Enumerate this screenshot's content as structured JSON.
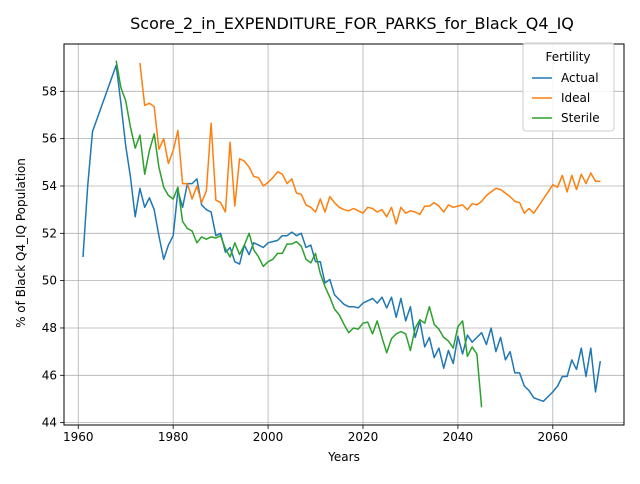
{
  "chart_data": {
    "type": "line",
    "title": "Score_2_in_EXPENDITURE_FOR_PARKS_for_Black_Q4_IQ",
    "xlabel": "Years",
    "ylabel": "% of Black Q4_IQ Population",
    "xlim": [
      1957,
      2075
    ],
    "ylim": [
      43.9,
      60.0
    ],
    "xticks": [
      1960,
      1980,
      2000,
      2020,
      2040,
      2060
    ],
    "yticks": [
      44,
      46,
      48,
      50,
      52,
      54,
      56,
      58
    ],
    "grid": true,
    "legend": {
      "title": "Fertility",
      "position": "top-right"
    },
    "series": [
      {
        "name": "Actual",
        "color": "#1f77b4",
        "points": [
          [
            1961,
            51.0
          ],
          [
            1962,
            54.0
          ],
          [
            1963,
            56.3
          ],
          [
            1968,
            59.1
          ],
          [
            1969,
            57.5
          ],
          [
            1970,
            55.7
          ],
          [
            1971,
            54.4
          ],
          [
            1972,
            52.7
          ],
          [
            1973,
            53.9
          ],
          [
            1974,
            53.1
          ],
          [
            1975,
            53.5
          ],
          [
            1976,
            53.0
          ],
          [
            1977,
            51.9
          ],
          [
            1978,
            50.9
          ],
          [
            1979,
            51.5
          ],
          [
            1980,
            51.9
          ],
          [
            1981,
            53.8
          ],
          [
            1982,
            53.1
          ],
          [
            1983,
            54.1
          ],
          [
            1984,
            54.1
          ],
          [
            1985,
            54.3
          ],
          [
            1986,
            53.2
          ],
          [
            1987,
            53.0
          ],
          [
            1988,
            52.9
          ],
          [
            1989,
            51.9
          ],
          [
            1990,
            52.0
          ],
          [
            1991,
            51.2
          ],
          [
            1992,
            51.4
          ],
          [
            1993,
            50.8
          ],
          [
            1994,
            50.7
          ],
          [
            1995,
            51.5
          ],
          [
            1996,
            51.1
          ],
          [
            1997,
            51.6
          ],
          [
            1998,
            51.5
          ],
          [
            1999,
            51.4
          ],
          [
            2000,
            51.6
          ],
          [
            2001,
            51.65
          ],
          [
            2002,
            51.7
          ],
          [
            2003,
            51.9
          ],
          [
            2004,
            51.9
          ],
          [
            2005,
            52.05
          ],
          [
            2006,
            51.9
          ],
          [
            2007,
            52.0
          ],
          [
            2008,
            51.4
          ],
          [
            2009,
            51.5
          ],
          [
            2010,
            50.8
          ],
          [
            2011,
            50.8
          ],
          [
            2012,
            49.9
          ],
          [
            2013,
            50.05
          ],
          [
            2014,
            49.4
          ],
          [
            2015,
            49.2
          ],
          [
            2016,
            49.0
          ],
          [
            2017,
            48.9
          ],
          [
            2018,
            48.9
          ],
          [
            2019,
            48.85
          ],
          [
            2020,
            49.05
          ],
          [
            2021,
            49.15
          ],
          [
            2022,
            49.25
          ],
          [
            2023,
            49.05
          ],
          [
            2024,
            49.3
          ],
          [
            2025,
            48.85
          ],
          [
            2026,
            49.3
          ],
          [
            2027,
            48.45
          ],
          [
            2028,
            49.25
          ],
          [
            2029,
            48.3
          ],
          [
            2030,
            48.9
          ],
          [
            2031,
            47.6
          ],
          [
            2032,
            48.3
          ],
          [
            2033,
            47.2
          ],
          [
            2034,
            47.6
          ],
          [
            2035,
            46.75
          ],
          [
            2036,
            47.15
          ],
          [
            2037,
            46.3
          ],
          [
            2038,
            47.05
          ],
          [
            2039,
            46.5
          ],
          [
            2040,
            47.65
          ],
          [
            2041,
            46.9
          ],
          [
            2042,
            47.7
          ],
          [
            2043,
            47.4
          ],
          [
            2044,
            47.6
          ],
          [
            2045,
            47.8
          ],
          [
            2046,
            47.3
          ],
          [
            2047,
            48.0
          ],
          [
            2048,
            47.0
          ],
          [
            2049,
            47.6
          ],
          [
            2050,
            46.65
          ],
          [
            2051,
            47.0
          ],
          [
            2052,
            46.1
          ],
          [
            2053,
            46.1
          ],
          [
            2054,
            45.55
          ],
          [
            2055,
            45.35
          ],
          [
            2056,
            45.05
          ],
          [
            2058,
            44.9
          ],
          [
            2059,
            45.1
          ],
          [
            2060,
            45.3
          ],
          [
            2061,
            45.55
          ],
          [
            2062,
            45.95
          ],
          [
            2063,
            45.95
          ],
          [
            2064,
            46.65
          ],
          [
            2065,
            46.25
          ],
          [
            2066,
            47.15
          ],
          [
            2067,
            45.95
          ],
          [
            2068,
            47.15
          ],
          [
            2069,
            45.3
          ],
          [
            2070,
            46.6
          ]
        ]
      },
      {
        "name": "Ideal",
        "color": "#ff7f0e",
        "points": [
          [
            1973,
            59.2
          ],
          [
            1974,
            57.4
          ],
          [
            1975,
            57.5
          ],
          [
            1976,
            57.35
          ],
          [
            1977,
            55.55
          ],
          [
            1978,
            56.0
          ],
          [
            1979,
            54.95
          ],
          [
            1980,
            55.5
          ],
          [
            1981,
            56.35
          ],
          [
            1982,
            54.1
          ],
          [
            1983,
            54.1
          ],
          [
            1984,
            53.45
          ],
          [
            1985,
            54.0
          ],
          [
            1986,
            53.3
          ],
          [
            1987,
            53.8
          ],
          [
            1988,
            56.65
          ],
          [
            1989,
            53.4
          ],
          [
            1990,
            53.3
          ],
          [
            1991,
            52.9
          ],
          [
            1992,
            55.85
          ],
          [
            1993,
            53.15
          ],
          [
            1994,
            55.15
          ],
          [
            1995,
            55.05
          ],
          [
            1996,
            54.8
          ],
          [
            1997,
            54.4
          ],
          [
            1998,
            54.35
          ],
          [
            1999,
            54.0
          ],
          [
            2000,
            54.15
          ],
          [
            2001,
            54.35
          ],
          [
            2002,
            54.6
          ],
          [
            2003,
            54.5
          ],
          [
            2004,
            54.1
          ],
          [
            2005,
            54.3
          ],
          [
            2006,
            53.7
          ],
          [
            2007,
            53.65
          ],
          [
            2008,
            53.2
          ],
          [
            2009,
            53.1
          ],
          [
            2010,
            52.9
          ],
          [
            2011,
            53.45
          ],
          [
            2012,
            52.9
          ],
          [
            2013,
            53.55
          ],
          [
            2014,
            53.3
          ],
          [
            2015,
            53.1
          ],
          [
            2016,
            53.0
          ],
          [
            2017,
            52.95
          ],
          [
            2018,
            53.05
          ],
          [
            2019,
            52.95
          ],
          [
            2020,
            52.85
          ],
          [
            2021,
            53.1
          ],
          [
            2022,
            53.05
          ],
          [
            2023,
            52.9
          ],
          [
            2024,
            53.0
          ],
          [
            2025,
            52.7
          ],
          [
            2026,
            53.1
          ],
          [
            2027,
            52.4
          ],
          [
            2028,
            53.1
          ],
          [
            2029,
            52.85
          ],
          [
            2030,
            52.95
          ],
          [
            2031,
            52.9
          ],
          [
            2032,
            52.8
          ],
          [
            2033,
            53.15
          ],
          [
            2034,
            53.15
          ],
          [
            2035,
            53.3
          ],
          [
            2036,
            53.15
          ],
          [
            2037,
            52.9
          ],
          [
            2038,
            53.2
          ],
          [
            2039,
            53.1
          ],
          [
            2040,
            53.15
          ],
          [
            2041,
            53.2
          ],
          [
            2042,
            53.0
          ],
          [
            2043,
            53.25
          ],
          [
            2044,
            53.2
          ],
          [
            2045,
            53.35
          ],
          [
            2046,
            53.6
          ],
          [
            2047,
            53.75
          ],
          [
            2048,
            53.9
          ],
          [
            2049,
            53.85
          ],
          [
            2050,
            53.7
          ],
          [
            2051,
            53.55
          ],
          [
            2052,
            53.35
          ],
          [
            2053,
            53.3
          ],
          [
            2054,
            52.85
          ],
          [
            2055,
            53.05
          ],
          [
            2056,
            52.85
          ],
          [
            2057,
            53.15
          ],
          [
            2058,
            53.45
          ],
          [
            2059,
            53.75
          ],
          [
            2060,
            54.05
          ],
          [
            2061,
            53.95
          ],
          [
            2062,
            54.45
          ],
          [
            2063,
            53.75
          ],
          [
            2064,
            54.45
          ],
          [
            2065,
            53.85
          ],
          [
            2066,
            54.5
          ],
          [
            2067,
            54.1
          ],
          [
            2068,
            54.55
          ],
          [
            2069,
            54.2
          ],
          [
            2070,
            54.2
          ]
        ]
      },
      {
        "name": "Sterile",
        "color": "#2ca02c",
        "points": [
          [
            1968,
            59.3
          ],
          [
            1969,
            58.15
          ],
          [
            1970,
            57.6
          ],
          [
            1971,
            56.5
          ],
          [
            1972,
            55.6
          ],
          [
            1973,
            56.15
          ],
          [
            1974,
            54.5
          ],
          [
            1975,
            55.5
          ],
          [
            1976,
            56.2
          ],
          [
            1977,
            54.8
          ],
          [
            1978,
            53.95
          ],
          [
            1979,
            53.6
          ],
          [
            1980,
            53.45
          ],
          [
            1981,
            53.95
          ],
          [
            1982,
            52.5
          ],
          [
            1983,
            52.2
          ],
          [
            1984,
            52.1
          ],
          [
            1985,
            51.6
          ],
          [
            1986,
            51.85
          ],
          [
            1987,
            51.75
          ],
          [
            1988,
            51.85
          ],
          [
            1989,
            51.8
          ],
          [
            1990,
            51.9
          ],
          [
            1991,
            51.35
          ],
          [
            1992,
            51.0
          ],
          [
            1993,
            51.6
          ],
          [
            1994,
            51.1
          ],
          [
            1995,
            51.5
          ],
          [
            1996,
            52.0
          ],
          [
            1997,
            51.3
          ],
          [
            1998,
            51.0
          ],
          [
            1999,
            50.6
          ],
          [
            2000,
            50.8
          ],
          [
            2001,
            50.9
          ],
          [
            2002,
            51.15
          ],
          [
            2003,
            51.15
          ],
          [
            2004,
            51.55
          ],
          [
            2005,
            51.55
          ],
          [
            2006,
            51.65
          ],
          [
            2007,
            51.45
          ],
          [
            2008,
            50.9
          ],
          [
            2009,
            50.75
          ],
          [
            2010,
            51.15
          ],
          [
            2011,
            50.3
          ],
          [
            2012,
            49.75
          ],
          [
            2013,
            49.3
          ],
          [
            2014,
            48.8
          ],
          [
            2015,
            48.55
          ],
          [
            2016,
            48.15
          ],
          [
            2017,
            47.8
          ],
          [
            2018,
            48.0
          ],
          [
            2019,
            47.95
          ],
          [
            2020,
            48.2
          ],
          [
            2021,
            48.25
          ],
          [
            2022,
            47.75
          ],
          [
            2023,
            48.3
          ],
          [
            2024,
            47.6
          ],
          [
            2025,
            46.95
          ],
          [
            2026,
            47.55
          ],
          [
            2027,
            47.75
          ],
          [
            2028,
            47.85
          ],
          [
            2029,
            47.75
          ],
          [
            2030,
            47.05
          ],
          [
            2031,
            48.0
          ],
          [
            2032,
            48.35
          ],
          [
            2033,
            48.2
          ],
          [
            2034,
            48.9
          ],
          [
            2035,
            48.15
          ],
          [
            2036,
            47.95
          ],
          [
            2037,
            47.6
          ],
          [
            2038,
            47.45
          ],
          [
            2039,
            47.15
          ],
          [
            2040,
            48.05
          ],
          [
            2041,
            48.3
          ],
          [
            2042,
            46.8
          ],
          [
            2043,
            47.2
          ],
          [
            2044,
            46.9
          ],
          [
            2045,
            44.65
          ]
        ]
      }
    ]
  }
}
